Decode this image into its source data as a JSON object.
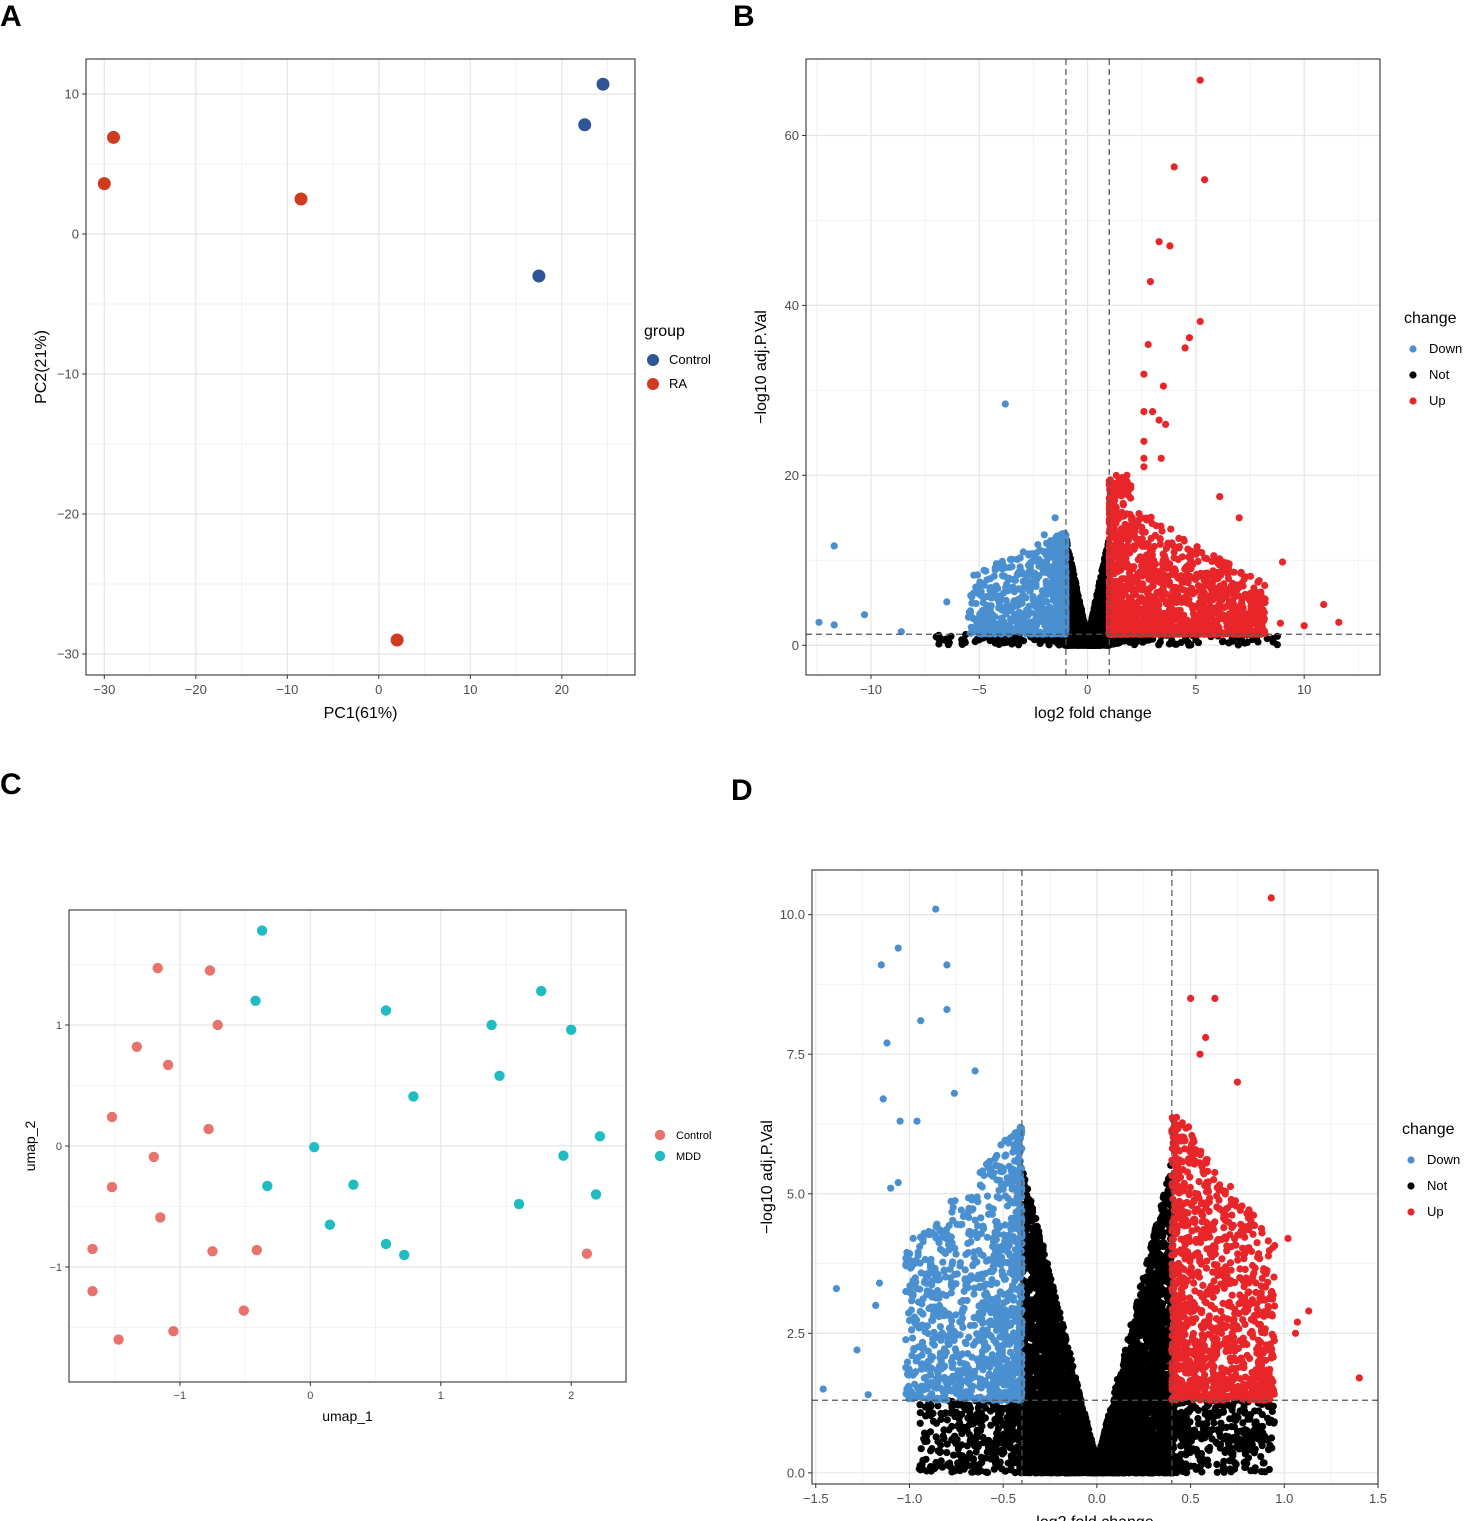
{
  "panels": [
    {
      "letter": "A"
    },
    {
      "letter": "B"
    },
    {
      "letter": "C"
    },
    {
      "letter": "D"
    }
  ],
  "chart_data": [
    {
      "id": "A",
      "type": "scatter",
      "title": "",
      "xlabel": "PC1(61%)",
      "ylabel": "PC2(21%)",
      "xlim": [
        -32,
        28
      ],
      "ylim": [
        -31.5,
        12.5
      ],
      "xticks": [
        -30,
        -20,
        -10,
        0,
        10,
        20
      ],
      "xtick_labels": [
        "−30",
        "−20",
        "−10",
        "0",
        "10",
        "20"
      ],
      "yticks": [
        10,
        0,
        -10,
        -20,
        -30
      ],
      "ytick_labels": [
        "10",
        "0",
        "−10",
        "−20",
        "−30"
      ],
      "legend": {
        "title": "group",
        "placement": "right",
        "entries": [
          {
            "label": "Control",
            "color": "#2f5597"
          },
          {
            "label": "RA",
            "color": "#d23a1f"
          }
        ]
      },
      "series": [
        {
          "name": "Control",
          "color": "#2f5597",
          "points": [
            [
              24.5,
              10.7
            ],
            [
              22.5,
              7.8
            ],
            [
              17.5,
              -3.0
            ]
          ]
        },
        {
          "name": "RA",
          "color": "#d23a1f",
          "points": [
            [
              -29.0,
              6.9
            ],
            [
              -30.0,
              3.6
            ],
            [
              -8.5,
              2.5
            ],
            [
              2.0,
              -29.0
            ]
          ]
        }
      ]
    },
    {
      "id": "B",
      "type": "scatter",
      "subtype": "volcano",
      "xlabel": "log2 fold change",
      "ylabel": "−log10 adj.P.Val",
      "xlim": [
        -13,
        13.5
      ],
      "ylim": [
        -3.5,
        69
      ],
      "xticks": [
        -10,
        -5,
        0,
        5,
        10
      ],
      "xtick_labels": [
        "−10",
        "−5",
        "0",
        "5",
        "10"
      ],
      "yticks": [
        0,
        20,
        40,
        60
      ],
      "ytick_labels": [
        "0",
        "20",
        "40",
        "60"
      ],
      "vlines": [
        -1,
        1
      ],
      "hline": 1.3,
      "legend": {
        "title": "change",
        "placement": "right",
        "entries": [
          {
            "label": "Down",
            "color": "#4a90d0"
          },
          {
            "label": "Not",
            "color": "#000000"
          },
          {
            "label": "Up",
            "color": "#e8262a"
          }
        ]
      },
      "highlight_points": {
        "Down": [
          [
            -3.8,
            28.4
          ],
          [
            -11.7,
            11.7
          ],
          [
            -12.4,
            2.7
          ],
          [
            -11.7,
            2.4
          ],
          [
            -10.3,
            3.6
          ],
          [
            -8.6,
            1.6
          ],
          [
            -6.5,
            5.1
          ],
          [
            -5.0,
            6.0
          ],
          [
            -5.5,
            3.3
          ],
          [
            -4.5,
            3.7
          ],
          [
            -1.5,
            15.0
          ],
          [
            -2.0,
            13.0
          ],
          [
            -1.2,
            12.0
          ],
          [
            -3.2,
            8.5
          ]
        ],
        "Up": [
          [
            5.2,
            66.5
          ],
          [
            4.0,
            56.3
          ],
          [
            5.4,
            54.8
          ],
          [
            3.3,
            47.5
          ],
          [
            3.8,
            47.0
          ],
          [
            2.9,
            42.8
          ],
          [
            5.2,
            38.1
          ],
          [
            2.8,
            35.4
          ],
          [
            4.7,
            36.2
          ],
          [
            4.5,
            35.0
          ],
          [
            3.5,
            30.5
          ],
          [
            2.6,
            31.9
          ],
          [
            3.0,
            27.5
          ],
          [
            2.6,
            27.5
          ],
          [
            3.3,
            26.5
          ],
          [
            3.6,
            26.0
          ],
          [
            2.6,
            24.0
          ],
          [
            3.4,
            22.0
          ],
          [
            2.6,
            22.0
          ],
          [
            2.6,
            21.0
          ],
          [
            6.1,
            17.5
          ],
          [
            7.0,
            15.0
          ],
          [
            9.0,
            9.8
          ],
          [
            10.9,
            4.8
          ],
          [
            11.6,
            2.7
          ],
          [
            10.0,
            2.3
          ],
          [
            8.9,
            2.6
          ]
        ]
      },
      "generated_points": {
        "description": "dense synthetic V-shaped distribution rendered from parameters",
        "down_count": 650,
        "up_count": 1500,
        "not_count": 2500,
        "down_color": "#4a90d0",
        "up_color": "#e8262a",
        "not_color": "#000000"
      }
    },
    {
      "id": "C",
      "type": "scatter",
      "xlabel": "umap_1",
      "ylabel": "umap_2",
      "xlim": [
        -1.85,
        2.42
      ],
      "ylim": [
        -1.95,
        1.95
      ],
      "xticks": [
        -1,
        0,
        1,
        2
      ],
      "xtick_labels": [
        "−1",
        "0",
        "1",
        "2"
      ],
      "yticks": [
        1,
        0,
        -1
      ],
      "ytick_labels": [
        "1",
        "0",
        "−1"
      ],
      "legend": {
        "title": "",
        "placement": "right",
        "entries": [
          {
            "label": "Control",
            "color": "#e8736c"
          },
          {
            "label": "MDD",
            "color": "#1fbcc1"
          }
        ]
      },
      "series": [
        {
          "name": "Control",
          "color": "#e8736c",
          "points": [
            [
              -1.17,
              1.47
            ],
            [
              -0.77,
              1.45
            ],
            [
              -0.71,
              1.0
            ],
            [
              -1.33,
              0.82
            ],
            [
              -1.09,
              0.67
            ],
            [
              -1.52,
              0.24
            ],
            [
              -0.78,
              0.14
            ],
            [
              -1.2,
              -0.09
            ],
            [
              -1.52,
              -0.34
            ],
            [
              -1.15,
              -0.59
            ],
            [
              -1.67,
              -0.85
            ],
            [
              -0.75,
              -0.87
            ],
            [
              -0.41,
              -0.86
            ],
            [
              2.12,
              -0.89
            ],
            [
              -1.67,
              -1.2
            ],
            [
              -0.51,
              -1.36
            ],
            [
              -1.05,
              -1.53
            ],
            [
              -1.47,
              -1.6
            ]
          ]
        },
        {
          "name": "MDD",
          "color": "#1fbcc1",
          "points": [
            [
              -0.37,
              1.78
            ],
            [
              -0.42,
              1.2
            ],
            [
              0.58,
              1.12
            ],
            [
              1.77,
              1.28
            ],
            [
              1.39,
              1.0
            ],
            [
              2.0,
              0.96
            ],
            [
              1.45,
              0.58
            ],
            [
              0.79,
              0.41
            ],
            [
              0.03,
              -0.01
            ],
            [
              2.22,
              0.08
            ],
            [
              1.94,
              -0.08
            ],
            [
              -0.33,
              -0.33
            ],
            [
              0.33,
              -0.32
            ],
            [
              2.19,
              -0.4
            ],
            [
              1.6,
              -0.48
            ],
            [
              0.15,
              -0.65
            ],
            [
              0.58,
              -0.81
            ],
            [
              0.72,
              -0.9
            ]
          ]
        }
      ]
    },
    {
      "id": "D",
      "type": "scatter",
      "subtype": "volcano",
      "xlabel": "log2 fold change",
      "ylabel": "−log10 adj.P.Val",
      "xlim": [
        -1.52,
        1.5
      ],
      "ylim": [
        -0.2,
        10.8
      ],
      "xticks": [
        -1.5,
        -1.0,
        -0.5,
        0.0,
        0.5,
        1.0,
        1.5
      ],
      "xtick_labels": [
        "−1.5",
        "−1.0",
        "−0.5",
        "0.0",
        "0.5",
        "1.0",
        "1.5"
      ],
      "yticks": [
        0.0,
        2.5,
        5.0,
        7.5,
        10.0
      ],
      "ytick_labels": [
        "0.0",
        "2.5",
        "5.0",
        "7.5",
        "10.0"
      ],
      "vlines": [
        -0.4,
        0.4
      ],
      "hline": 1.3,
      "legend": {
        "title": "change",
        "placement": "right",
        "entries": [
          {
            "label": "Down",
            "color": "#4a90d0"
          },
          {
            "label": "Not",
            "color": "#000000"
          },
          {
            "label": "Up",
            "color": "#e8262a"
          }
        ]
      },
      "highlight_points": {
        "Down": [
          [
            -0.86,
            10.1
          ],
          [
            -1.06,
            9.4
          ],
          [
            -1.15,
            9.1
          ],
          [
            -0.8,
            9.1
          ],
          [
            -0.8,
            8.3
          ],
          [
            -0.94,
            8.1
          ],
          [
            -1.12,
            7.7
          ],
          [
            -0.65,
            7.2
          ],
          [
            -1.14,
            6.7
          ],
          [
            -0.76,
            6.8
          ],
          [
            -1.05,
            6.3
          ],
          [
            -0.96,
            6.3
          ],
          [
            -1.06,
            5.2
          ],
          [
            -1.1,
            5.1
          ],
          [
            -0.98,
            4.2
          ],
          [
            -1.39,
            3.3
          ],
          [
            -1.16,
            3.4
          ],
          [
            -1.18,
            3.0
          ],
          [
            -1.28,
            2.2
          ],
          [
            -1.46,
            1.5
          ],
          [
            -1.22,
            1.4
          ]
        ],
        "Up": [
          [
            0.93,
            10.3
          ],
          [
            0.5,
            8.5
          ],
          [
            0.63,
            8.5
          ],
          [
            0.58,
            7.8
          ],
          [
            0.55,
            7.5
          ],
          [
            0.75,
            7.0
          ],
          [
            1.02,
            4.2
          ],
          [
            1.13,
            2.9
          ],
          [
            1.07,
            2.7
          ],
          [
            1.06,
            2.5
          ],
          [
            1.4,
            1.7
          ],
          [
            0.91,
            2.2
          ],
          [
            0.83,
            2.5
          ],
          [
            0.9,
            1.8
          ]
        ]
      },
      "generated_points": {
        "description": "dense synthetic V-shaped distribution rendered from parameters",
        "down_count": 1100,
        "up_count": 1100,
        "not_count": 6000,
        "down_color": "#4a90d0",
        "up_color": "#e8262a",
        "not_color": "#000000"
      }
    }
  ]
}
